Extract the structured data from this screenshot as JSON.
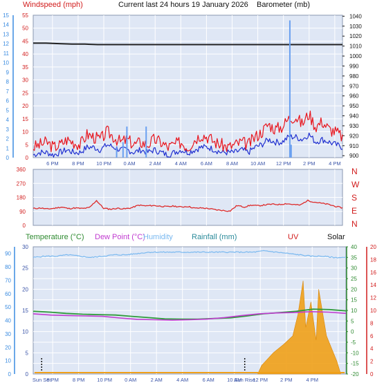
{
  "header": {
    "windspeed": "Windspeed (mph)",
    "title": "Current last 24 hours 19 January 2026",
    "barometer": "Barometer (mb)"
  },
  "panel3_header": {
    "temperature": "Temperature (°C)",
    "dewpoint": "Dew Point (°C)",
    "humidity": "Humidity",
    "rainfall": "Rainfall (mm)",
    "uv": "UV",
    "solar": "Solar"
  },
  "colors": {
    "plot_bg": "#dfe7f5",
    "grid": "#ffffff",
    "wind_gust": "#e8141c",
    "wind_avg": "#1f2fd0",
    "pressure": "#222222",
    "spike": "#6aa0f0",
    "direction": "#dd2a2a",
    "temperature": "#2e9a3a",
    "dewpoint": "#c03ad0",
    "humidity": "#78b8f0",
    "solar": "#f0a018",
    "axis_red": "#d11b1b",
    "axis_blue": "#3a8be0",
    "axis_green": "#2e8a30"
  },
  "chart_data": [
    {
      "type": "line",
      "x_ticks": [
        "6 PM",
        "8 PM",
        "10 PM",
        "0 AM",
        "2 AM",
        "4 AM",
        "6 AM",
        "8 AM",
        "10 AM",
        "12 PM",
        "2 PM",
        "4 PM"
      ],
      "y_left_mph": {
        "range": [
          0,
          55
        ],
        "ticks": [
          "0",
          "5",
          "10",
          "15",
          "20",
          "25",
          "30",
          "35",
          "40",
          "45",
          "50",
          "55"
        ]
      },
      "y_left_bf": {
        "range": [
          0,
          15
        ],
        "ticks": [
          "0",
          "1",
          "2",
          "3",
          "4",
          "5",
          "6",
          "7",
          "8",
          "9",
          "10",
          "11",
          "12",
          "13",
          "14",
          "15"
        ]
      },
      "y_right_mb": {
        "range": [
          900,
          1045
        ],
        "ticks": [
          "900",
          "910",
          "920",
          "930",
          "940",
          "950",
          "960",
          "970",
          "980",
          "990",
          "1000",
          "1010",
          "1020",
          "1030",
          "1040"
        ]
      },
      "series": [
        {
          "role": "gust",
          "values": [
            4,
            5,
            6,
            4,
            5,
            7,
            6,
            5,
            9,
            8,
            7,
            10,
            8,
            6,
            7,
            5,
            6,
            5,
            7,
            6,
            4,
            5,
            6,
            4,
            7,
            9,
            8,
            6,
            5,
            4,
            5,
            6,
            5,
            8,
            10,
            13,
            11,
            12,
            15,
            16,
            13,
            17,
            12,
            14,
            11,
            10,
            8
          ]
        },
        {
          "role": "average",
          "values": [
            1,
            2,
            2,
            1,
            2,
            3,
            2,
            2,
            4,
            4,
            3,
            5,
            4,
            3,
            3,
            2,
            3,
            2,
            3,
            2,
            1,
            2,
            3,
            2,
            3,
            4,
            4,
            3,
            2,
            2,
            2,
            3,
            2,
            4,
            5,
            7,
            6,
            6,
            8,
            8,
            7,
            9,
            6,
            7,
            6,
            5,
            4
          ]
        },
        {
          "role": "pressure",
          "values": [
            1017,
            1017,
            1016.5,
            1016,
            1016,
            1015.5,
            1015.5,
            1015.5,
            1015.5,
            1015.5,
            1015.5,
            1015.5,
            1015.5,
            1015.5,
            1015.5,
            1015.5,
            1015.5,
            1015.5,
            1015.5,
            1015.5,
            1015.5,
            1015.5,
            1015.5,
            1015.5,
            1015.5
          ]
        },
        {
          "role": "spike",
          "values": [
            [
              4.6,
              4
            ],
            [
              5.1,
              6
            ],
            [
              5.4,
              12
            ],
            [
              6.9,
              12
            ],
            [
              18.1,
              53
            ],
            [
              18.2,
              5
            ]
          ]
        }
      ]
    },
    {
      "type": "line",
      "y_left": {
        "range": [
          0,
          360
        ],
        "ticks": [
          "0",
          "90",
          "180",
          "270",
          "360"
        ]
      },
      "y_right_labels": [
        "N",
        "W",
        "S",
        "E",
        "N"
      ],
      "series": [
        {
          "role": "direction",
          "values": [
            108,
            112,
            105,
            110,
            118,
            108,
            112,
            108,
            114,
            160,
            110,
            104,
            110,
            106,
            113,
            130,
            125,
            128,
            124,
            120,
            124,
            118,
            122,
            110,
            112,
            108,
            100,
            96,
            92,
            128,
            118,
            130,
            126,
            132,
            136,
            134,
            140,
            134,
            130,
            160,
            150,
            142,
            135,
            122,
            112
          ]
        }
      ]
    },
    {
      "type": "line",
      "x_ticks": [
        "Sun Set",
        "6 PM",
        "8 PM",
        "10 PM",
        "0 AM",
        "2 AM",
        "4 AM",
        "6 AM",
        "Sun Rise",
        "10 AM",
        "12 PM",
        "2 PM",
        "4 PM"
      ],
      "y_left_humidity": {
        "range": [
          0,
          95
        ],
        "ticks": [
          "0",
          "10",
          "20",
          "30",
          "40",
          "50",
          "60",
          "70",
          "80",
          "90"
        ]
      },
      "y_left_rain": {
        "range": [
          0,
          30
        ],
        "ticks": [
          "0",
          "5",
          "10",
          "15",
          "20",
          "25",
          "30"
        ]
      },
      "y_right_temp": {
        "range": [
          -20,
          40
        ],
        "ticks": [
          "-20",
          "-15",
          "-10",
          "-5",
          "0",
          "5",
          "10",
          "15",
          "20",
          "25",
          "30",
          "35",
          "40"
        ]
      },
      "y_right_uv": {
        "range": [
          0,
          20
        ],
        "ticks": [
          "0",
          "2",
          "4",
          "6",
          "8",
          "10",
          "12",
          "14",
          "16",
          "18",
          "20"
        ]
      },
      "series": [
        {
          "role": "humidity",
          "values": [
            87,
            88,
            88,
            89,
            88,
            87,
            88,
            89,
            89,
            90,
            91,
            91,
            91,
            91,
            91,
            91,
            91,
            91,
            91,
            91,
            92,
            91,
            90,
            89,
            88,
            88,
            87,
            87
          ]
        },
        {
          "role": "temperature",
          "values": [
            9.6,
            9.2,
            8.6,
            8.2,
            8.0,
            7.8,
            7.2,
            6.6,
            6.0,
            5.9,
            5.9,
            6.2,
            6.5,
            7.4,
            8.4,
            9.0,
            9.6,
            10.6,
            10.4,
            9.8
          ]
        },
        {
          "role": "dewpoint",
          "values": [
            8.4,
            7.8,
            7.6,
            7.4,
            7.2,
            6.4,
            5.8,
            5.6,
            5.4,
            5.6,
            5.9,
            6.6,
            7.6,
            8.4,
            8.8,
            9.0,
            9.4,
            9.2,
            8.6
          ]
        },
        {
          "role": "solar",
          "values": [
            [
              17.3,
              0
            ],
            [
              17.6,
              2
            ],
            [
              18.5,
              5
            ],
            [
              19.3,
              7
            ],
            [
              20.0,
              9
            ],
            [
              20.4,
              14
            ],
            [
              20.8,
              22
            ],
            [
              21.0,
              11
            ],
            [
              21.4,
              17
            ],
            [
              21.8,
              8
            ],
            [
              22.0,
              20
            ],
            [
              22.6,
              9
            ],
            [
              23.0,
              6
            ],
            [
              23.4,
              3
            ],
            [
              23.7,
              0
            ]
          ]
        }
      ]
    }
  ]
}
